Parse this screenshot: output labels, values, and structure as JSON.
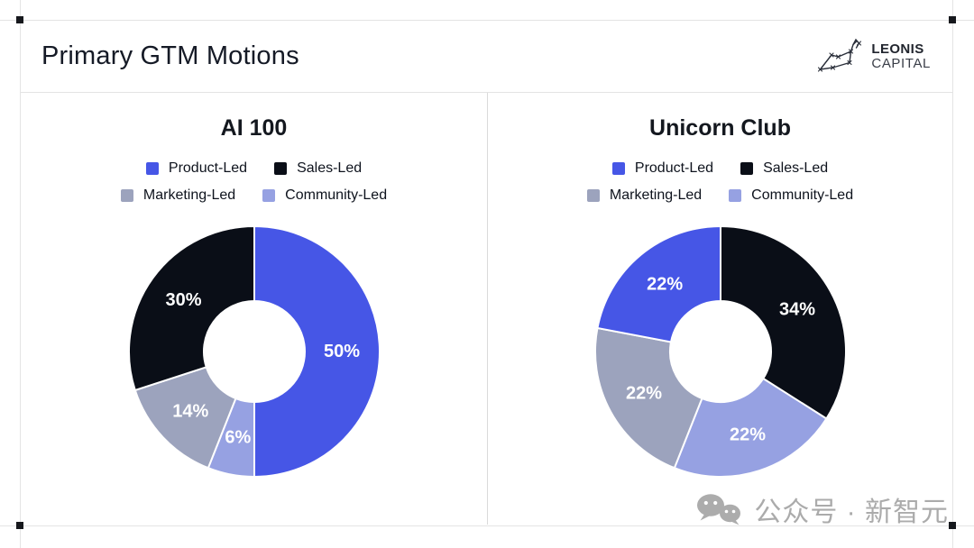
{
  "frame": {
    "title": "Primary GTM Motions"
  },
  "logo": {
    "line1": "LEONIS",
    "line2": "CAPITAL"
  },
  "palette": {
    "product": "#4656e6",
    "sales": "#0a0e17",
    "marketing": "#9ca3bd",
    "community": "#96a1e2"
  },
  "legend": {
    "items": [
      {
        "key": "product",
        "label": "Product-Led"
      },
      {
        "key": "sales",
        "label": "Sales-Led"
      },
      {
        "key": "marketing",
        "label": "Marketing-Led"
      },
      {
        "key": "community",
        "label": "Community-Led"
      }
    ]
  },
  "chart_data": [
    {
      "type": "pie",
      "donut": true,
      "title": "AI 100",
      "unit": "%",
      "legend_position": "top",
      "start_angle_deg": 0,
      "direction": "clockwise",
      "categories": [
        "Product-Led",
        "Sales-Led",
        "Marketing-Led",
        "Community-Led"
      ],
      "values": [
        50,
        30,
        14,
        6
      ],
      "slices": [
        {
          "label": "Product-Led",
          "value": 50,
          "color": "product"
        },
        {
          "label": "Community-Led",
          "value": 6,
          "color": "community"
        },
        {
          "label": "Marketing-Led",
          "value": 14,
          "color": "marketing"
        },
        {
          "label": "Sales-Led",
          "value": 30,
          "color": "sales"
        }
      ]
    },
    {
      "type": "pie",
      "donut": true,
      "title": "Unicorn Club",
      "unit": "%",
      "legend_position": "top",
      "start_angle_deg": 0,
      "direction": "clockwise",
      "categories": [
        "Product-Led",
        "Sales-Led",
        "Marketing-Led",
        "Community-Led"
      ],
      "values": [
        22,
        34,
        22,
        22
      ],
      "slices": [
        {
          "label": "Sales-Led",
          "value": 34,
          "color": "sales"
        },
        {
          "label": "Community-Led",
          "value": 22,
          "color": "community"
        },
        {
          "label": "Marketing-Led",
          "value": 22,
          "color": "marketing"
        },
        {
          "label": "Product-Led",
          "value": 22,
          "color": "product"
        }
      ]
    }
  ],
  "watermark": {
    "text": "公众号 · 新智元",
    "icon": "wechat-icon"
  }
}
